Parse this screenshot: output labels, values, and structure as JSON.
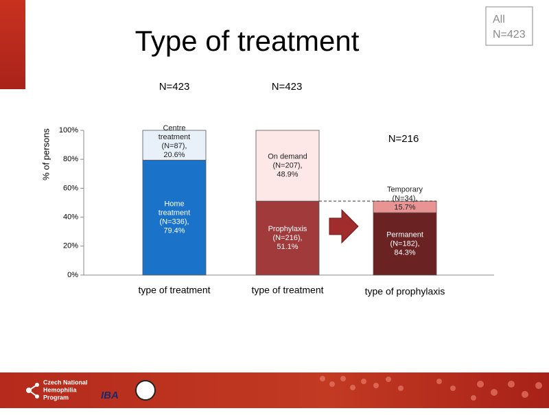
{
  "chart_data": {
    "type": "bar",
    "stacked": true,
    "title": "Type of treatment",
    "y_label": "% of persons",
    "ylim": [
      0,
      100
    ],
    "yticks": [
      {
        "value": 0,
        "label": "0%"
      },
      {
        "value": 20,
        "label": "20%"
      },
      {
        "value": 40,
        "label": "40%"
      },
      {
        "value": 60,
        "label": "60%"
      },
      {
        "value": 80,
        "label": "80%"
      },
      {
        "value": 100,
        "label": "100%"
      }
    ],
    "categories": [
      "type of treatment",
      "type of treatment",
      "type of prophylaxis"
    ],
    "n_labels": [
      "N=423",
      "N=423",
      "N=216"
    ],
    "stacks": [
      [
        {
          "label": [
            "Home",
            "treatment",
            "(N=336),",
            "79.4%"
          ],
          "color": "#1b73c9",
          "value": 79.4
        },
        {
          "label": [
            "Centre",
            "treatment",
            "(N=87),",
            "20.6%"
          ],
          "color": "#e8f1fa",
          "value": 20.6
        }
      ],
      [
        {
          "label": [
            "Prophylaxis",
            "(N=216),",
            "51.1%"
          ],
          "color": "#a13b3b",
          "value": 51.1
        },
        {
          "label": [
            "On demand",
            "(N=207),",
            "48.9%"
          ],
          "color": "#fde7e7",
          "value": 48.9
        }
      ],
      [
        {
          "label": [
            "Permanent",
            "(N=182),",
            "84.3%"
          ],
          "color": "#6a2222",
          "value": 43.1
        },
        {
          "label": [
            "Temporary",
            "(N=34),",
            "15.7%"
          ],
          "color": "#e99494",
          "value": 8.0
        }
      ]
    ]
  },
  "badge": [
    "All",
    "N=423"
  ],
  "footer": {
    "program": [
      "Czech National",
      "Hemophilia",
      "Program"
    ],
    "logo": "IBA"
  }
}
